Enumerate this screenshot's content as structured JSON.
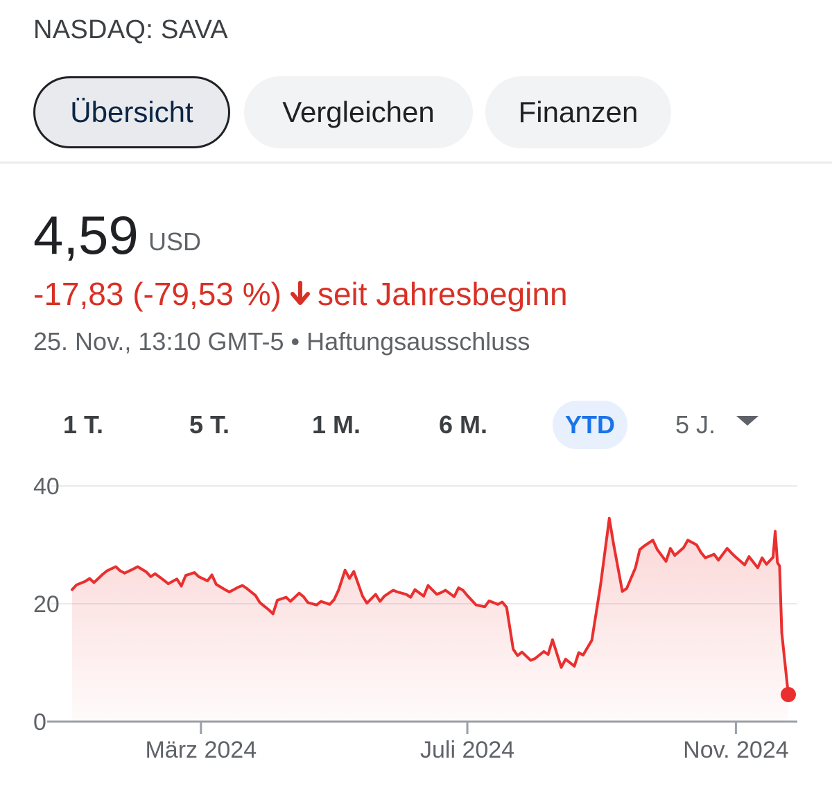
{
  "header": {
    "ticker": "NASDAQ: SAVA"
  },
  "tabs": [
    {
      "label": "Übersicht",
      "active": true
    },
    {
      "label": "Vergleichen",
      "active": false
    },
    {
      "label": "Finanzen",
      "active": false
    }
  ],
  "quote": {
    "price": "4,59",
    "currency": "USD",
    "change": "-17,83 (-79,53 %)",
    "change_direction": "down",
    "change_period": "seit Jahresbeginn",
    "timestamp": "25. Nov., 13:10 GMT-5",
    "separator": "•",
    "disclaimer": "Haftungsausschluss"
  },
  "ranges": [
    {
      "label": "1 T.",
      "active": false
    },
    {
      "label": "5 T.",
      "active": false
    },
    {
      "label": "1 M.",
      "active": false
    },
    {
      "label": "6 M.",
      "active": false
    },
    {
      "label": "YTD",
      "active": true
    },
    {
      "label": "5 J.",
      "active": false,
      "dropdown": true
    }
  ],
  "colors": {
    "down": "#d93025",
    "line": "#ea2f2f",
    "active_range": "#1a73e8"
  },
  "chart_data": {
    "type": "area",
    "ylim": [
      0,
      40
    ],
    "yticks": [
      0,
      20,
      40
    ],
    "xlim": [
      "2024-01-02",
      "2024-11-25"
    ],
    "xticks": [
      {
        "date": "2024-03-01",
        "label": "März 2024"
      },
      {
        "date": "2024-07-01",
        "label": "Juli 2024"
      },
      {
        "date": "2024-11-01",
        "label": "Nov. 2024"
      }
    ],
    "grid": true,
    "legend": "none",
    "series": [
      {
        "last_point_marker": true,
        "points": [
          [
            "2024-01-02",
            22.4
          ],
          [
            "2024-01-04",
            23.2
          ],
          [
            "2024-01-08",
            23.8
          ],
          [
            "2024-01-10",
            24.3
          ],
          [
            "2024-01-12",
            23.6
          ],
          [
            "2024-01-16",
            25.0
          ],
          [
            "2024-01-18",
            25.6
          ],
          [
            "2024-01-22",
            26.3
          ],
          [
            "2024-01-24",
            25.6
          ],
          [
            "2024-01-26",
            25.2
          ],
          [
            "2024-01-30",
            25.9
          ],
          [
            "2024-02-01",
            26.3
          ],
          [
            "2024-02-05",
            25.4
          ],
          [
            "2024-02-07",
            24.6
          ],
          [
            "2024-02-09",
            25.1
          ],
          [
            "2024-02-13",
            24.0
          ],
          [
            "2024-02-15",
            23.4
          ],
          [
            "2024-02-19",
            24.2
          ],
          [
            "2024-02-21",
            23.0
          ],
          [
            "2024-02-23",
            24.8
          ],
          [
            "2024-02-27",
            25.3
          ],
          [
            "2024-02-29",
            24.6
          ],
          [
            "2024-03-04",
            23.9
          ],
          [
            "2024-03-06",
            24.9
          ],
          [
            "2024-03-08",
            23.3
          ],
          [
            "2024-03-12",
            22.4
          ],
          [
            "2024-03-14",
            22.0
          ],
          [
            "2024-03-18",
            22.8
          ],
          [
            "2024-03-20",
            23.1
          ],
          [
            "2024-03-22",
            22.6
          ],
          [
            "2024-03-26",
            21.4
          ],
          [
            "2024-03-28",
            20.2
          ],
          [
            "2024-04-01",
            19.0
          ],
          [
            "2024-04-03",
            18.3
          ],
          [
            "2024-04-05",
            20.6
          ],
          [
            "2024-04-09",
            21.1
          ],
          [
            "2024-04-11",
            20.4
          ],
          [
            "2024-04-15",
            21.8
          ],
          [
            "2024-04-17",
            21.2
          ],
          [
            "2024-04-19",
            20.2
          ],
          [
            "2024-04-23",
            19.8
          ],
          [
            "2024-04-25",
            20.4
          ],
          [
            "2024-04-29",
            19.9
          ],
          [
            "2024-05-01",
            20.7
          ],
          [
            "2024-05-03",
            22.3
          ],
          [
            "2024-05-06",
            25.7
          ],
          [
            "2024-05-08",
            24.3
          ],
          [
            "2024-05-10",
            25.5
          ],
          [
            "2024-05-14",
            21.3
          ],
          [
            "2024-05-16",
            20.1
          ],
          [
            "2024-05-20",
            21.6
          ],
          [
            "2024-05-22",
            20.4
          ],
          [
            "2024-05-24",
            21.3
          ],
          [
            "2024-05-28",
            22.3
          ],
          [
            "2024-05-30",
            22.0
          ],
          [
            "2024-06-03",
            21.6
          ],
          [
            "2024-06-05",
            21.1
          ],
          [
            "2024-06-07",
            22.4
          ],
          [
            "2024-06-11",
            21.3
          ],
          [
            "2024-06-13",
            23.1
          ],
          [
            "2024-06-17",
            21.6
          ],
          [
            "2024-06-19",
            21.9
          ],
          [
            "2024-06-21",
            22.3
          ],
          [
            "2024-06-25",
            21.2
          ],
          [
            "2024-06-27",
            22.7
          ],
          [
            "2024-06-29",
            22.3
          ],
          [
            "2024-07-01",
            21.4
          ],
          [
            "2024-07-03",
            20.6
          ],
          [
            "2024-07-05",
            19.8
          ],
          [
            "2024-07-09",
            19.5
          ],
          [
            "2024-07-11",
            20.5
          ],
          [
            "2024-07-15",
            19.9
          ],
          [
            "2024-07-17",
            20.3
          ],
          [
            "2024-07-19",
            19.4
          ],
          [
            "2024-07-22",
            12.3
          ],
          [
            "2024-07-24",
            11.2
          ],
          [
            "2024-07-26",
            11.8
          ],
          [
            "2024-07-30",
            10.4
          ],
          [
            "2024-08-01",
            10.7
          ],
          [
            "2024-08-05",
            11.9
          ],
          [
            "2024-08-07",
            11.4
          ],
          [
            "2024-08-09",
            13.9
          ],
          [
            "2024-08-13",
            9.2
          ],
          [
            "2024-08-15",
            10.6
          ],
          [
            "2024-08-19",
            9.4
          ],
          [
            "2024-08-21",
            11.7
          ],
          [
            "2024-08-23",
            11.3
          ],
          [
            "2024-08-27",
            13.8
          ],
          [
            "2024-08-29",
            18.5
          ],
          [
            "2024-08-31",
            23.2
          ],
          [
            "2024-09-04",
            34.5
          ],
          [
            "2024-09-06",
            30.1
          ],
          [
            "2024-09-10",
            22.1
          ],
          [
            "2024-09-12",
            22.6
          ],
          [
            "2024-09-16",
            26.1
          ],
          [
            "2024-09-18",
            29.2
          ],
          [
            "2024-09-20",
            29.8
          ],
          [
            "2024-09-24",
            30.8
          ],
          [
            "2024-09-26",
            29.2
          ],
          [
            "2024-09-30",
            27.2
          ],
          [
            "2024-10-02",
            29.4
          ],
          [
            "2024-10-04",
            28.2
          ],
          [
            "2024-10-08",
            29.5
          ],
          [
            "2024-10-10",
            30.8
          ],
          [
            "2024-10-14",
            30.0
          ],
          [
            "2024-10-16",
            28.7
          ],
          [
            "2024-10-18",
            27.8
          ],
          [
            "2024-10-22",
            28.4
          ],
          [
            "2024-10-24",
            27.4
          ],
          [
            "2024-10-28",
            29.4
          ],
          [
            "2024-10-30",
            28.6
          ],
          [
            "2024-11-01",
            27.9
          ],
          [
            "2024-11-05",
            26.6
          ],
          [
            "2024-11-07",
            28.0
          ],
          [
            "2024-11-11",
            26.1
          ],
          [
            "2024-11-13",
            27.8
          ],
          [
            "2024-11-15",
            26.7
          ],
          [
            "2024-11-18",
            27.9
          ],
          [
            "2024-11-19",
            32.3
          ],
          [
            "2024-11-20",
            27.0
          ],
          [
            "2024-11-21",
            26.4
          ],
          [
            "2024-11-22",
            15.0
          ],
          [
            "2024-11-25",
            4.59
          ]
        ]
      }
    ]
  }
}
